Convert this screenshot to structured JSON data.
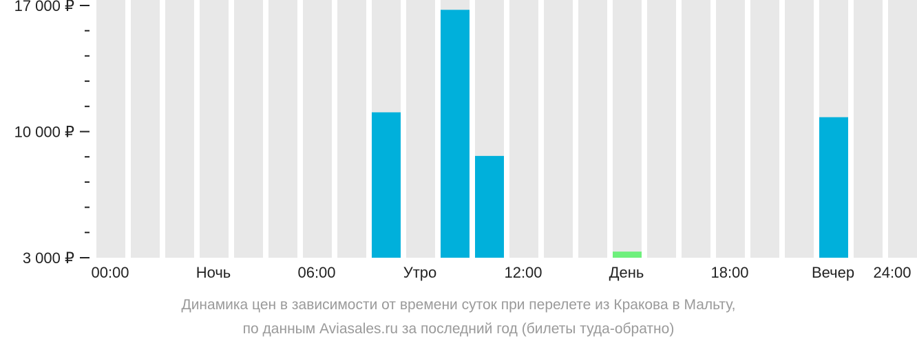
{
  "chart_data": {
    "type": "bar",
    "categories": [
      "00:00",
      "01:00",
      "02:00",
      "03:00",
      "04:00",
      "05:00",
      "06:00",
      "07:00",
      "08:00",
      "09:00",
      "10:00",
      "11:00",
      "12:00",
      "13:00",
      "14:00",
      "15:00",
      "16:00",
      "17:00",
      "18:00",
      "19:00",
      "20:00",
      "21:00",
      "22:00",
      "23:00"
    ],
    "values": [
      null,
      null,
      null,
      null,
      null,
      null,
      null,
      null,
      11070,
      null,
      16760,
      8650,
      null,
      null,
      null,
      3340,
      null,
      null,
      null,
      null,
      null,
      10800,
      null,
      null
    ],
    "highlight_index": 15,
    "ylim": [
      3000,
      17000
    ],
    "y_ticks": [
      {
        "value": 17000,
        "label": "17 000 ₽"
      },
      {
        "value": 10000,
        "label": "10 000 ₽"
      },
      {
        "value": 3000,
        "label": "3 000 ₽"
      }
    ],
    "y_minor_step": 1400,
    "x_labels": [
      {
        "pos": 0,
        "label": "00:00"
      },
      {
        "pos": 3,
        "label": "Ночь"
      },
      {
        "pos": 6,
        "label": "06:00"
      },
      {
        "pos": 9,
        "label": "Утро"
      },
      {
        "pos": 12,
        "label": "12:00"
      },
      {
        "pos": 15,
        "label": "День"
      },
      {
        "pos": 18,
        "label": "18:00"
      },
      {
        "pos": 21,
        "label": "Вечер"
      },
      {
        "pos": 24,
        "label": "24:00"
      }
    ],
    "colors": {
      "bar": "#00b0db",
      "highlight": "#6ef07c",
      "background_bar": "#e8e8e8",
      "axis": "#222222"
    }
  },
  "caption": {
    "line1": "Динамика цен в зависимости от времени суток при перелете из Кракова в Мальту,",
    "line2": "по данным Aviasales.ru за последний год (билеты туда-обратно)"
  }
}
